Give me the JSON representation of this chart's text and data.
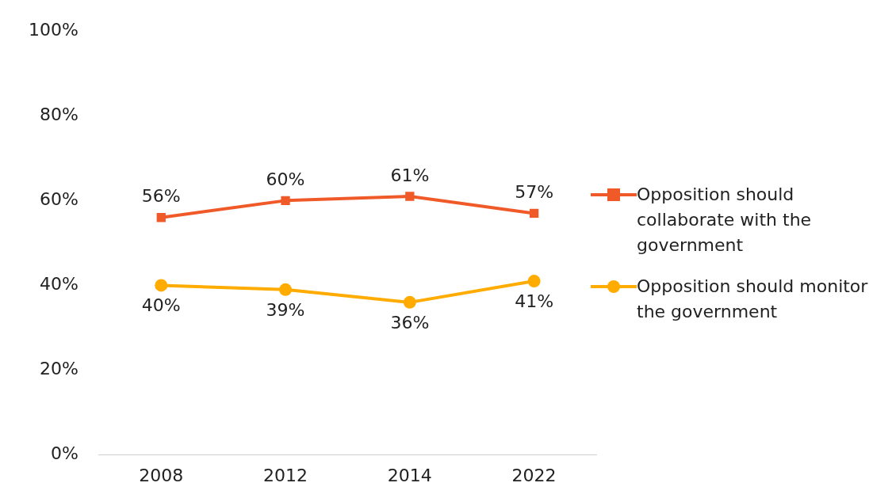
{
  "chart_data": {
    "type": "line",
    "categories": [
      "2008",
      "2012",
      "2014",
      "2022"
    ],
    "series": [
      {
        "name": "Opposition should collaborate with the government",
        "color": "#f05a28",
        "marker": "square",
        "values": [
          56,
          60,
          61,
          57
        ],
        "value_labels": [
          "56%",
          "60%",
          "61%",
          "57%"
        ]
      },
      {
        "name": "Opposition should monitor the government",
        "color": "#ffab00",
        "marker": "circle",
        "values": [
          40,
          39,
          36,
          41
        ],
        "value_labels": [
          "40%",
          "39%",
          "36%",
          "41%"
        ]
      }
    ],
    "ylim": [
      0,
      100
    ],
    "yticks": [
      {
        "value": 0,
        "label": "0%"
      },
      {
        "value": 20,
        "label": "20%"
      },
      {
        "value": 40,
        "label": "40%"
      },
      {
        "value": 60,
        "label": "60%"
      },
      {
        "value": 80,
        "label": "80%"
      },
      {
        "value": 100,
        "label": "100%"
      }
    ],
    "grid": false,
    "legend": "right",
    "line_style": "solid"
  }
}
